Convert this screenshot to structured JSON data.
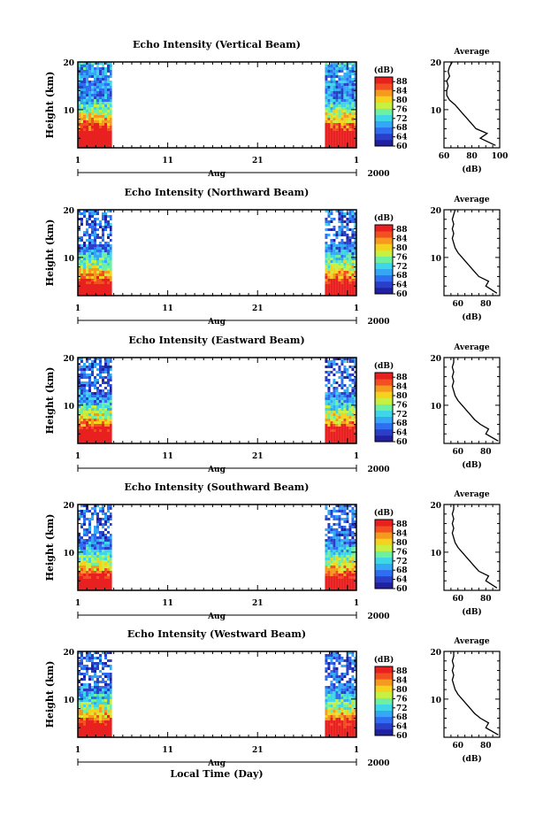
{
  "figure": {
    "xaxis_title": "Local Time (Day)",
    "month_label": "Aug",
    "year_label": "2000",
    "day_ticks": [
      "1",
      "11",
      "21",
      "1"
    ],
    "height_label": "Height (km)",
    "height_ticks": [
      "20",
      "10"
    ],
    "colorbar_unit": "(dB)",
    "colorbar_ticks": [
      "88",
      "84",
      "80",
      "76",
      "72",
      "68",
      "64",
      "60"
    ],
    "average_title": "Average",
    "average_xlabel": "(dB)"
  },
  "colors": {
    "scale": [
      "#2020a0",
      "#2a3ec8",
      "#2f6ef0",
      "#35a8f5",
      "#3fd6e8",
      "#6ef0a0",
      "#c8f040",
      "#f5d21e",
      "#f59a1e",
      "#f25020",
      "#e82020"
    ]
  },
  "chart_data": [
    {
      "type": "heatmap",
      "title": "Echo Intensity (Vertical Beam)",
      "xlabel": "Aug",
      "ylabel": "Height (km)",
      "xlim": [
        1,
        32
      ],
      "ylim": [
        2,
        20
      ],
      "data_periods_day": [
        [
          1,
          4.8
        ],
        [
          28.5,
          32
        ]
      ],
      "colorbar": {
        "label": "(dB)",
        "ticks": [
          60,
          64,
          68,
          72,
          76,
          80,
          84,
          88
        ],
        "range": [
          60,
          90
        ]
      },
      "average_profile": {
        "xlim": [
          60,
          100
        ],
        "xticks": [
          "60",
          "80",
          "100"
        ],
        "height_km": [
          2.5,
          4,
          5,
          6,
          7,
          8,
          9,
          10,
          11,
          12,
          13,
          14,
          15,
          16,
          17,
          18,
          19,
          20
        ],
        "db": [
          97,
          86,
          91,
          83,
          80,
          77,
          74,
          71,
          68,
          64,
          62,
          62,
          63,
          62,
          64,
          63,
          64,
          66
        ]
      }
    },
    {
      "type": "heatmap",
      "title": "Echo Intensity (Northward Beam)",
      "xlabel": "Aug",
      "ylabel": "Height (km)",
      "xlim": [
        1,
        32
      ],
      "ylim": [
        2,
        20
      ],
      "data_periods_day": [
        [
          1,
          4.8
        ],
        [
          28.5,
          32
        ]
      ],
      "colorbar": {
        "label": "(dB)",
        "ticks": [
          60,
          64,
          68,
          72,
          76,
          80,
          84,
          88
        ],
        "range": [
          60,
          90
        ]
      },
      "average_profile": {
        "xlim": [
          50,
          90
        ],
        "xticks": [
          "60",
          "80"
        ],
        "height_km": [
          2.5,
          4,
          5,
          6,
          7,
          8,
          9,
          10,
          11,
          12,
          13,
          14,
          15,
          16,
          17,
          18,
          19,
          20
        ],
        "db": [
          88,
          80,
          82,
          75,
          72,
          69,
          66,
          63,
          60,
          58,
          57,
          56,
          57,
          56,
          57,
          56,
          57,
          58
        ]
      }
    },
    {
      "type": "heatmap",
      "title": "Echo Intensity (Eastward Beam)",
      "xlabel": "Aug",
      "ylabel": "Height (km)",
      "xlim": [
        1,
        32
      ],
      "ylim": [
        2,
        20
      ],
      "data_periods_day": [
        [
          1,
          4.8
        ],
        [
          28.5,
          32
        ]
      ],
      "colorbar": {
        "label": "(dB)",
        "ticks": [
          60,
          64,
          68,
          72,
          76,
          80,
          84,
          88
        ],
        "range": [
          60,
          90
        ]
      },
      "average_profile": {
        "xlim": [
          50,
          90
        ],
        "xticks": [
          "60",
          "80"
        ],
        "height_km": [
          2.5,
          4,
          5,
          6,
          7,
          8,
          9,
          10,
          11,
          12,
          13,
          14,
          15,
          16,
          17,
          18,
          19,
          20
        ],
        "db": [
          89,
          80,
          82,
          76,
          72,
          69,
          66,
          63,
          60,
          58,
          57,
          56,
          57,
          56,
          57,
          56,
          57,
          57
        ]
      }
    },
    {
      "type": "heatmap",
      "title": "Echo Intensity (Southward Beam)",
      "xlabel": "Aug",
      "ylabel": "Height (km)",
      "xlim": [
        1,
        32
      ],
      "ylim": [
        2,
        20
      ],
      "data_periods_day": [
        [
          1,
          4.8
        ],
        [
          28.5,
          32
        ]
      ],
      "colorbar": {
        "label": "(dB)",
        "ticks": [
          60,
          64,
          68,
          72,
          76,
          80,
          84,
          88
        ],
        "range": [
          60,
          90
        ]
      },
      "average_profile": {
        "xlim": [
          50,
          90
        ],
        "xticks": [
          "60",
          "80"
        ],
        "height_km": [
          2.5,
          4,
          5,
          6,
          7,
          8,
          9,
          10,
          11,
          12,
          13,
          14,
          15,
          16,
          17,
          18,
          19,
          20
        ],
        "db": [
          88,
          80,
          82,
          75,
          72,
          69,
          66,
          63,
          60,
          58,
          57,
          56,
          57,
          56,
          57,
          56,
          57,
          57
        ]
      }
    },
    {
      "type": "heatmap",
      "title": "Echo Intensity (Westward Beam)",
      "xlabel": "Aug",
      "ylabel": "Height (km)",
      "xlim": [
        1,
        32
      ],
      "ylim": [
        2,
        20
      ],
      "data_periods_day": [
        [
          1,
          4.8
        ],
        [
          28.5,
          32
        ]
      ],
      "colorbar": {
        "label": "(dB)",
        "ticks": [
          60,
          64,
          68,
          72,
          76,
          80,
          84,
          88
        ],
        "range": [
          60,
          90
        ]
      },
      "average_profile": {
        "xlim": [
          50,
          90
        ],
        "xticks": [
          "60",
          "80"
        ],
        "height_km": [
          2.5,
          4,
          5,
          6,
          7,
          8,
          9,
          10,
          11,
          12,
          13,
          14,
          15,
          16,
          17,
          18,
          19,
          20
        ],
        "db": [
          89,
          80,
          82,
          76,
          72,
          69,
          66,
          63,
          60,
          58,
          57,
          56,
          57,
          56,
          57,
          56,
          57,
          57
        ]
      }
    }
  ]
}
